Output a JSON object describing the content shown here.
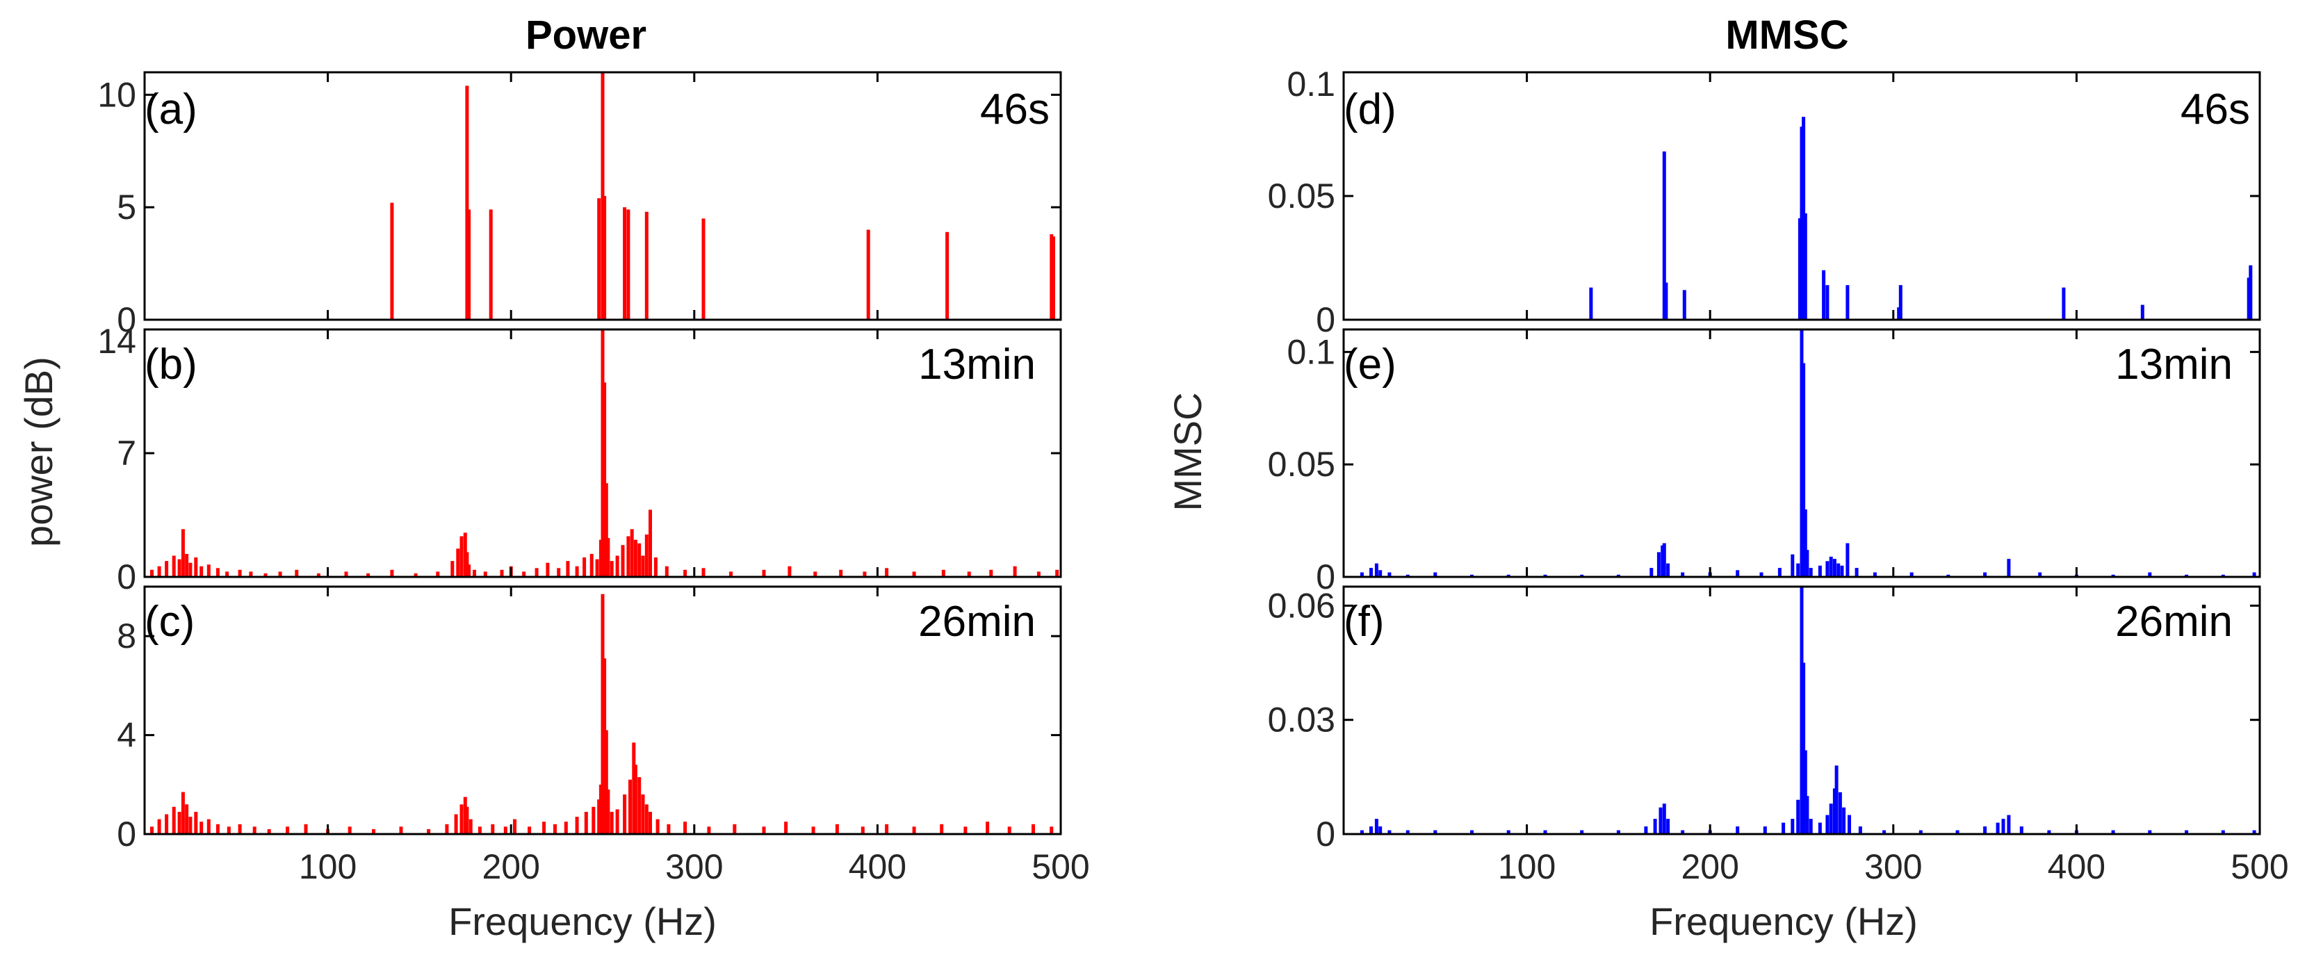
{
  "columns": [
    {
      "title": "Power",
      "ylabel": "power (dB)",
      "xlabel": "Frequency (Hz)",
      "color": "#ff0000"
    },
    {
      "title": "MMSC",
      "ylabel": "MMSC",
      "xlabel": "Frequency (Hz)",
      "color": "#0000ff"
    }
  ],
  "chart_data": [
    {
      "type": "bar",
      "panel": "(a)",
      "label": "46s",
      "xlim": [
        0,
        500
      ],
      "ylim": [
        0,
        11
      ],
      "yticks": [
        0,
        5,
        10
      ],
      "xticks": [
        100,
        200,
        300,
        400,
        500
      ],
      "color": "#ff0000",
      "x": [
        135,
        176,
        177,
        189,
        248,
        250,
        251,
        262,
        264,
        274,
        305,
        395,
        438,
        495,
        496
      ],
      "values": [
        5.2,
        10.4,
        4.9,
        4.9,
        5.4,
        11.0,
        5.5,
        5.0,
        4.9,
        4.8,
        4.5,
        4.0,
        3.9,
        3.8,
        3.7
      ]
    },
    {
      "type": "bar",
      "panel": "(b)",
      "label": "13min",
      "xlim": [
        0,
        500
      ],
      "ylim": [
        0,
        14
      ],
      "yticks": [
        0,
        7,
        14
      ],
      "xticks": [
        100,
        200,
        300,
        400,
        500
      ],
      "color": "#ff0000",
      "x": [
        4,
        8,
        12,
        16,
        19,
        21,
        23,
        25,
        28,
        31,
        35,
        40,
        45,
        52,
        58,
        66,
        74,
        83,
        95,
        110,
        122,
        135,
        148,
        160,
        168,
        171,
        173,
        175,
        176,
        177,
        180,
        186,
        195,
        200,
        207,
        214,
        220,
        226,
        231,
        236,
        240,
        244,
        247,
        249,
        250,
        251,
        252,
        253,
        255,
        258,
        261,
        264,
        266,
        268,
        270,
        272,
        274,
        276,
        279,
        285,
        295,
        305,
        320,
        338,
        352,
        366,
        380,
        393,
        405,
        420,
        436,
        450,
        462,
        475,
        488,
        498
      ],
      "values": [
        0.4,
        0.6,
        0.9,
        1.2,
        1.0,
        2.7,
        1.3,
        0.8,
        1.1,
        0.6,
        0.7,
        0.5,
        0.3,
        0.4,
        0.3,
        0.2,
        0.3,
        0.4,
        0.2,
        0.3,
        0.2,
        0.4,
        0.2,
        0.3,
        0.9,
        1.6,
        2.3,
        2.5,
        1.4,
        0.7,
        0.4,
        0.3,
        0.4,
        0.6,
        0.3,
        0.5,
        0.8,
        0.5,
        0.9,
        0.6,
        1.1,
        1.3,
        1.0,
        2.1,
        14.0,
        11.0,
        5.3,
        2.2,
        0.9,
        1.2,
        1.8,
        2.3,
        2.7,
        2.1,
        1.9,
        1.2,
        2.4,
        3.8,
        1.1,
        0.6,
        0.4,
        0.5,
        0.3,
        0.4,
        0.6,
        0.3,
        0.4,
        0.3,
        0.5,
        0.3,
        0.4,
        0.3,
        0.4,
        0.6,
        0.3,
        0.4
      ]
    },
    {
      "type": "bar",
      "panel": "(c)",
      "label": "26min",
      "xlim": [
        0,
        500
      ],
      "ylim": [
        0,
        10
      ],
      "yticks": [
        0,
        4,
        8
      ],
      "xticks": [
        100,
        200,
        300,
        400,
        500
      ],
      "color": "#ff0000",
      "x": [
        4,
        8,
        12,
        16,
        19,
        21,
        23,
        25,
        28,
        31,
        35,
        40,
        46,
        52,
        60,
        68,
        78,
        88,
        100,
        112,
        125,
        140,
        155,
        165,
        170,
        173,
        175,
        176,
        178,
        183,
        190,
        197,
        202,
        210,
        218,
        224,
        230,
        236,
        241,
        245,
        248,
        249,
        250,
        251,
        252,
        253,
        255,
        258,
        262,
        265,
        267,
        268,
        270,
        272,
        274,
        276,
        280,
        286,
        295,
        308,
        322,
        338,
        350,
        365,
        378,
        392,
        405,
        420,
        435,
        448,
        460,
        472,
        485,
        495
      ],
      "values": [
        0.3,
        0.6,
        0.8,
        1.1,
        0.9,
        1.7,
        1.2,
        0.7,
        0.9,
        0.5,
        0.6,
        0.4,
        0.3,
        0.4,
        0.3,
        0.2,
        0.3,
        0.4,
        0.2,
        0.3,
        0.2,
        0.3,
        0.2,
        0.4,
        0.8,
        1.2,
        1.5,
        1.1,
        0.6,
        0.3,
        0.4,
        0.3,
        0.6,
        0.3,
        0.5,
        0.4,
        0.5,
        0.7,
        0.9,
        1.1,
        1.4,
        2.0,
        9.7,
        7.1,
        4.2,
        1.8,
        0.9,
        1.0,
        1.6,
        2.2,
        3.7,
        2.8,
        2.3,
        1.6,
        1.2,
        0.9,
        0.6,
        0.4,
        0.5,
        0.3,
        0.4,
        0.3,
        0.5,
        0.3,
        0.4,
        0.3,
        0.4,
        0.3,
        0.4,
        0.3,
        0.5,
        0.3,
        0.4,
        0.3
      ]
    },
    {
      "type": "bar",
      "panel": "(d)",
      "label": "46s",
      "xlim": [
        0,
        500
      ],
      "ylim": [
        0,
        0.1
      ],
      "yticks": [
        0,
        0.05,
        0.1
      ],
      "yticklabels": [
        "0",
        "0.05",
        "0.1"
      ],
      "xticks": [
        100,
        200,
        300,
        400,
        500
      ],
      "color": "#0000ff",
      "x": [
        135,
        175,
        176,
        186,
        249,
        250,
        251,
        252,
        262,
        264,
        275,
        303,
        304,
        393,
        436,
        494,
        495
      ],
      "values": [
        0.013,
        0.068,
        0.015,
        0.012,
        0.041,
        0.078,
        0.082,
        0.043,
        0.02,
        0.014,
        0.014,
        0.005,
        0.014,
        0.013,
        0.006,
        0.017,
        0.022
      ]
    },
    {
      "type": "bar",
      "panel": "(e)",
      "label": "13min",
      "xlim": [
        0,
        500
      ],
      "ylim": [
        0,
        0.11
      ],
      "yticks": [
        0,
        0.05,
        0.1
      ],
      "yticklabels": [
        "0",
        "0.05",
        "0.1"
      ],
      "xticks": [
        100,
        200,
        300,
        400,
        500
      ],
      "color": "#0000ff",
      "x": [
        10,
        15,
        18,
        20,
        25,
        35,
        50,
        70,
        90,
        110,
        130,
        150,
        168,
        172,
        174,
        175,
        177,
        185,
        200,
        215,
        228,
        238,
        245,
        248,
        250,
        251,
        252,
        253,
        255,
        260,
        264,
        266,
        268,
        270,
        272,
        275,
        280,
        290,
        310,
        330,
        350,
        363,
        380,
        400,
        420,
        440,
        460,
        480,
        497
      ],
      "values": [
        0.002,
        0.004,
        0.006,
        0.003,
        0.002,
        0.001,
        0.002,
        0.001,
        0.001,
        0.001,
        0.001,
        0.001,
        0.004,
        0.011,
        0.014,
        0.015,
        0.006,
        0.002,
        0.002,
        0.003,
        0.002,
        0.004,
        0.01,
        0.006,
        0.11,
        0.095,
        0.03,
        0.012,
        0.004,
        0.005,
        0.007,
        0.009,
        0.008,
        0.006,
        0.005,
        0.015,
        0.004,
        0.002,
        0.002,
        0.001,
        0.002,
        0.008,
        0.002,
        0.001,
        0.001,
        0.002,
        0.001,
        0.001,
        0.002
      ]
    },
    {
      "type": "bar",
      "panel": "(f)",
      "label": "26min",
      "xlim": [
        0,
        500
      ],
      "ylim": [
        0,
        0.065
      ],
      "yticks": [
        0,
        0.03,
        0.06
      ],
      "yticklabels": [
        "0",
        "0.03",
        "0.06"
      ],
      "xticks": [
        100,
        200,
        300,
        400,
        500
      ],
      "color": "#0000ff",
      "x": [
        10,
        15,
        18,
        20,
        25,
        35,
        50,
        70,
        90,
        110,
        130,
        150,
        165,
        170,
        173,
        175,
        177,
        185,
        200,
        215,
        230,
        240,
        245,
        248,
        250,
        251,
        252,
        253,
        255,
        260,
        264,
        266,
        268,
        269,
        271,
        273,
        276,
        282,
        295,
        315,
        335,
        350,
        357,
        360,
        363,
        370,
        385,
        400,
        420,
        440,
        460,
        480,
        497
      ],
      "values": [
        0.001,
        0.002,
        0.004,
        0.002,
        0.001,
        0.001,
        0.001,
        0.001,
        0.001,
        0.001,
        0.001,
        0.001,
        0.002,
        0.004,
        0.007,
        0.008,
        0.004,
        0.001,
        0.001,
        0.002,
        0.002,
        0.003,
        0.004,
        0.009,
        0.065,
        0.045,
        0.022,
        0.01,
        0.004,
        0.003,
        0.005,
        0.008,
        0.012,
        0.018,
        0.011,
        0.007,
        0.005,
        0.002,
        0.001,
        0.001,
        0.001,
        0.002,
        0.003,
        0.004,
        0.005,
        0.002,
        0.001,
        0.001,
        0.001,
        0.001,
        0.001,
        0.001,
        0.001
      ]
    }
  ]
}
